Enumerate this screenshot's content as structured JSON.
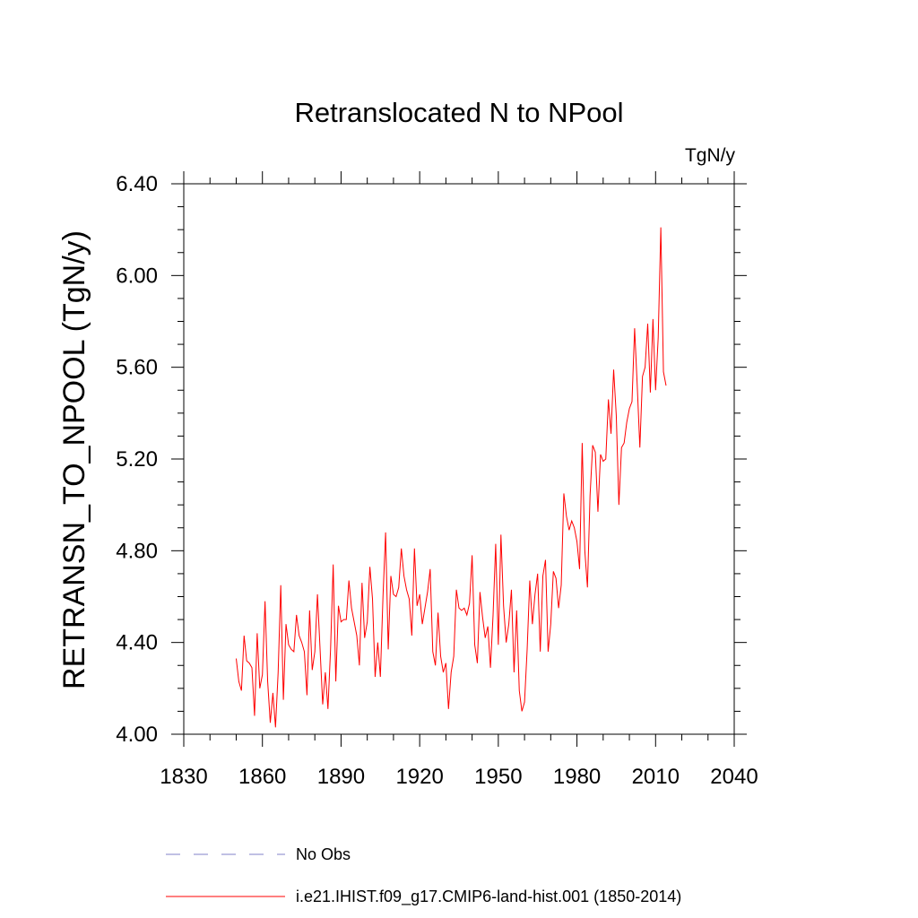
{
  "chart_data": {
    "type": "line",
    "title": "Retranslocated N to NPool",
    "units": "TgN/y",
    "xlabel": "",
    "ylabel": "RETRANSN_TO_NPOOL  (TgN/y)",
    "xlim": [
      1830,
      2040
    ],
    "ylim": [
      4.0,
      6.4
    ],
    "x_ticks": [
      "1830",
      "1860",
      "1890",
      "1920",
      "1950",
      "1980",
      "2010",
      "2040"
    ],
    "y_ticks": [
      "4.00",
      "4.40",
      "4.80",
      "5.20",
      "5.60",
      "6.00",
      "6.40"
    ],
    "grid": false,
    "legend_position": "bottom",
    "legend": [
      {
        "label": "No Obs",
        "color": "#8080c8",
        "style": "dashed"
      },
      {
        "label": "i.e21.IHIST.f09_g17.CMIP6-land-hist.001 (1850-2014)",
        "color": "#ff0000",
        "style": "solid"
      }
    ],
    "series": [
      {
        "name": "i.e21.IHIST.f09_g17.CMIP6-land-hist.001 (1850-2014)",
        "color": "#ff0000",
        "x_start": 1850,
        "x_step": 1,
        "values": [
          4.33,
          4.23,
          4.19,
          4.43,
          4.32,
          4.31,
          4.29,
          4.08,
          4.44,
          4.2,
          4.26,
          4.58,
          4.23,
          4.05,
          4.18,
          4.03,
          4.27,
          4.65,
          4.15,
          4.48,
          4.39,
          4.37,
          4.36,
          4.52,
          4.43,
          4.4,
          4.36,
          4.17,
          4.54,
          4.28,
          4.36,
          4.61,
          4.37,
          4.13,
          4.27,
          4.11,
          4.37,
          4.74,
          4.23,
          4.56,
          4.49,
          4.5,
          4.5,
          4.67,
          4.55,
          4.49,
          4.43,
          4.3,
          4.66,
          4.42,
          4.49,
          4.73,
          4.59,
          4.25,
          4.4,
          4.25,
          4.6,
          4.88,
          4.37,
          4.69,
          4.61,
          4.6,
          4.64,
          4.81,
          4.69,
          4.63,
          4.59,
          4.43,
          4.81,
          4.56,
          4.61,
          4.48,
          4.55,
          4.62,
          4.72,
          4.36,
          4.3,
          4.53,
          4.34,
          4.27,
          4.31,
          4.11,
          4.27,
          4.34,
          4.63,
          4.55,
          4.54,
          4.55,
          4.52,
          4.57,
          4.78,
          4.39,
          4.31,
          4.62,
          4.51,
          4.42,
          4.47,
          4.29,
          4.52,
          4.83,
          4.39,
          4.87,
          4.56,
          4.4,
          4.48,
          4.63,
          4.27,
          4.54,
          4.19,
          4.1,
          4.14,
          4.37,
          4.67,
          4.48,
          4.61,
          4.7,
          4.36,
          4.69,
          4.76,
          4.36,
          4.48,
          4.71,
          4.68,
          4.55,
          4.65,
          5.05,
          4.95,
          4.89,
          4.93,
          4.9,
          4.84,
          4.72,
          5.27,
          4.8,
          4.64,
          5.04,
          5.26,
          5.23,
          4.97,
          5.22,
          5.19,
          5.2,
          5.46,
          5.31,
          5.59,
          5.39,
          5.0,
          5.25,
          5.27,
          5.36,
          5.42,
          5.45,
          5.77,
          5.52,
          5.25,
          5.56,
          5.6,
          5.79,
          5.49,
          5.81,
          5.5,
          5.73,
          6.21,
          5.58,
          5.52
        ]
      }
    ]
  }
}
